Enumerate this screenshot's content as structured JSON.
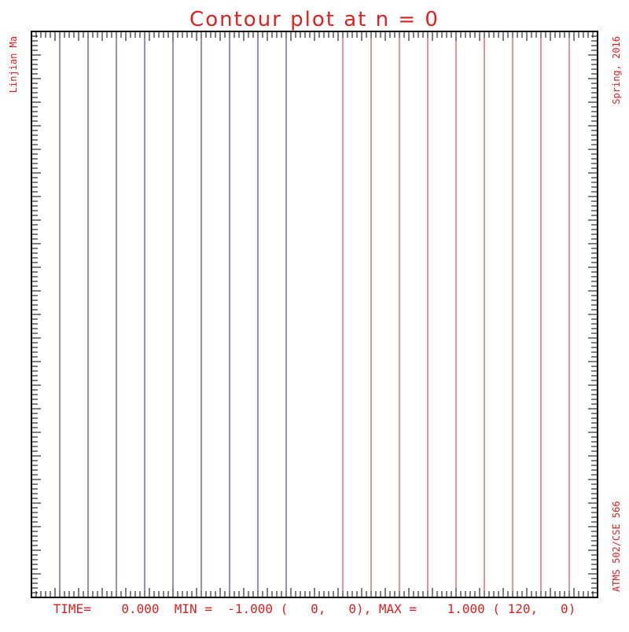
{
  "chart_data": {
    "type": "contour",
    "title": "Contour plot at n = 0",
    "left_label": "Linjian Ma",
    "right_top_label": "Spring, 2016",
    "right_bottom_label": "ATMS 502/CSE 566",
    "footer": "TIME=    0.000  MIN =  -1.000 (   0,   0), MAX =    1.000 ( 120,   0)",
    "xlim": [
      0,
      120
    ],
    "ylim": [
      0,
      120
    ],
    "grid": false,
    "negative_color": "#1f1f9a",
    "positive_color": "#e02020",
    "contours": [
      {
        "level": -0.9,
        "x": 6
      },
      {
        "level": -0.8,
        "x": 12
      },
      {
        "level": -0.7,
        "x": 18
      },
      {
        "level": -0.6,
        "x": 24
      },
      {
        "level": -0.5,
        "x": 30
      },
      {
        "level": -0.4,
        "x": 36
      },
      {
        "level": -0.3,
        "x": 42
      },
      {
        "level": -0.2,
        "x": 48
      },
      {
        "level": -0.1,
        "x": 54
      },
      {
        "level": 0.1,
        "x": 66
      },
      {
        "level": 0.2,
        "x": 72
      },
      {
        "level": 0.3,
        "x": 78
      },
      {
        "level": 0.4,
        "x": 84
      },
      {
        "level": 0.5,
        "x": 90
      },
      {
        "level": 0.6,
        "x": 96
      },
      {
        "level": 0.7,
        "x": 102
      },
      {
        "level": 0.8,
        "x": 108
      },
      {
        "level": 0.9,
        "x": 114
      }
    ]
  },
  "colors": {
    "text": "#e02020",
    "frame": "#000000"
  }
}
